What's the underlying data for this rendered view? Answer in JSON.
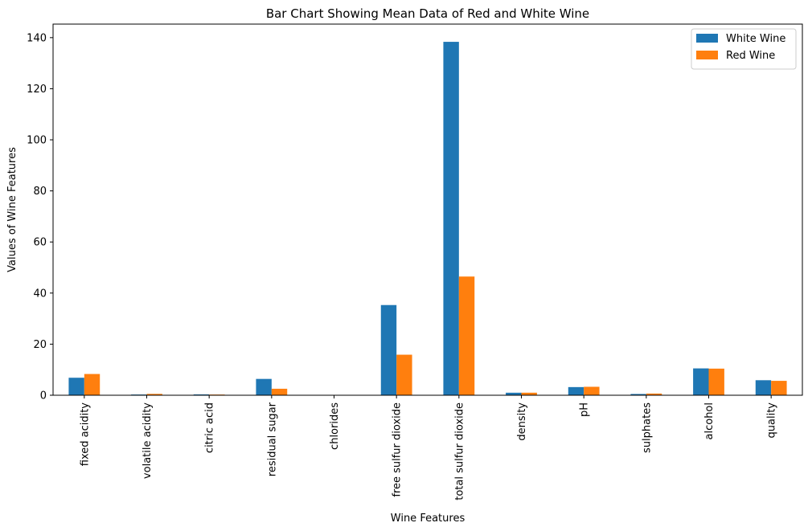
{
  "chart_data": {
    "type": "bar",
    "title": "Bar Chart Showing Mean Data of Red and White Wine",
    "xlabel": "Wine Features",
    "ylabel": "Values of Wine Features",
    "categories": [
      "fixed acidity",
      "volatile acidity",
      "citric acid",
      "residual sugar",
      "chlorides",
      "free sulfur dioxide",
      "total sulfur dioxide",
      "density",
      "pH",
      "sulphates",
      "alcohol",
      "quality"
    ],
    "series": [
      {
        "name": "White Wine",
        "color": "#1f77b4",
        "values": [
          6.85,
          0.28,
          0.33,
          6.39,
          0.046,
          35.31,
          138.36,
          0.99,
          3.19,
          0.49,
          10.51,
          5.88
        ]
      },
      {
        "name": "Red Wine",
        "color": "#ff7f0e",
        "values": [
          8.32,
          0.53,
          0.27,
          2.54,
          0.087,
          15.87,
          46.47,
          1.0,
          3.31,
          0.66,
          10.42,
          5.64
        ]
      }
    ],
    "ylim": [
      0,
      145.3
    ],
    "yticks": [
      0,
      20,
      40,
      60,
      80,
      100,
      120,
      140
    ],
    "grid": false,
    "legend_position": "top-right"
  }
}
